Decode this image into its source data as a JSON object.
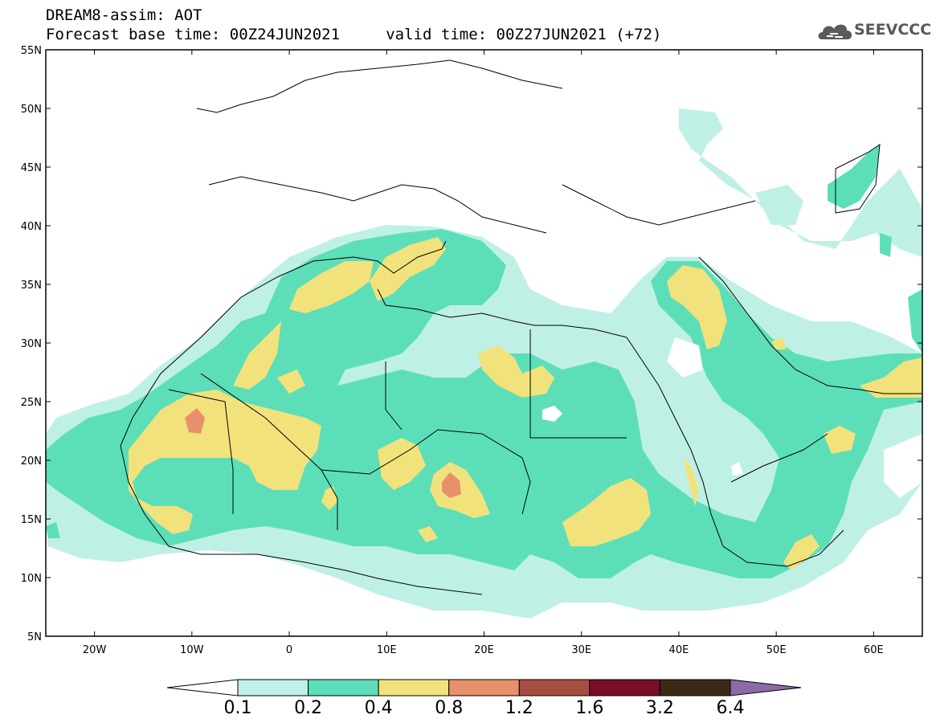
{
  "header": {
    "title": "DREAM8-assim: AOT",
    "subtitle": "Forecast base time: 00Z24JUN2021     valid time: 00Z27JUN2021 (+72)"
  },
  "logo": {
    "text": "SEEVCCC",
    "icon": "cloud-icon"
  },
  "map": {
    "lat_range": [
      5,
      55
    ],
    "lon_range": [
      -25,
      65
    ],
    "lat_ticks": [
      {
        "value": 55,
        "label": "55N"
      },
      {
        "value": 50,
        "label": "50N"
      },
      {
        "value": 45,
        "label": "45N"
      },
      {
        "value": 40,
        "label": "40N"
      },
      {
        "value": 35,
        "label": "35N"
      },
      {
        "value": 30,
        "label": "30N"
      },
      {
        "value": 25,
        "label": "25N"
      },
      {
        "value": 20,
        "label": "20N"
      },
      {
        "value": 15,
        "label": "15N"
      },
      {
        "value": 10,
        "label": "10N"
      },
      {
        "value": 5,
        "label": "5N"
      }
    ],
    "lon_ticks": [
      {
        "value": -20,
        "label": "20W"
      },
      {
        "value": -10,
        "label": "10W"
      },
      {
        "value": 0,
        "label": "0"
      },
      {
        "value": 10,
        "label": "10E"
      },
      {
        "value": 20,
        "label": "20E"
      },
      {
        "value": 30,
        "label": "30E"
      },
      {
        "value": 40,
        "label": "40E"
      },
      {
        "value": 50,
        "label": "50E"
      },
      {
        "value": 60,
        "label": "60E"
      }
    ],
    "colorbar": {
      "colors": [
        "#ffffff",
        "#bff0e6",
        "#5cdfb9",
        "#f2e27c",
        "#e8906c",
        "#a84e40",
        "#7a0c2c",
        "#3d2818",
        "#8c6aa8"
      ],
      "labels": [
        "0.1",
        "0.2",
        "0.4",
        "0.8",
        "1.2",
        "1.6",
        "3.2",
        "6.4"
      ]
    }
  }
}
